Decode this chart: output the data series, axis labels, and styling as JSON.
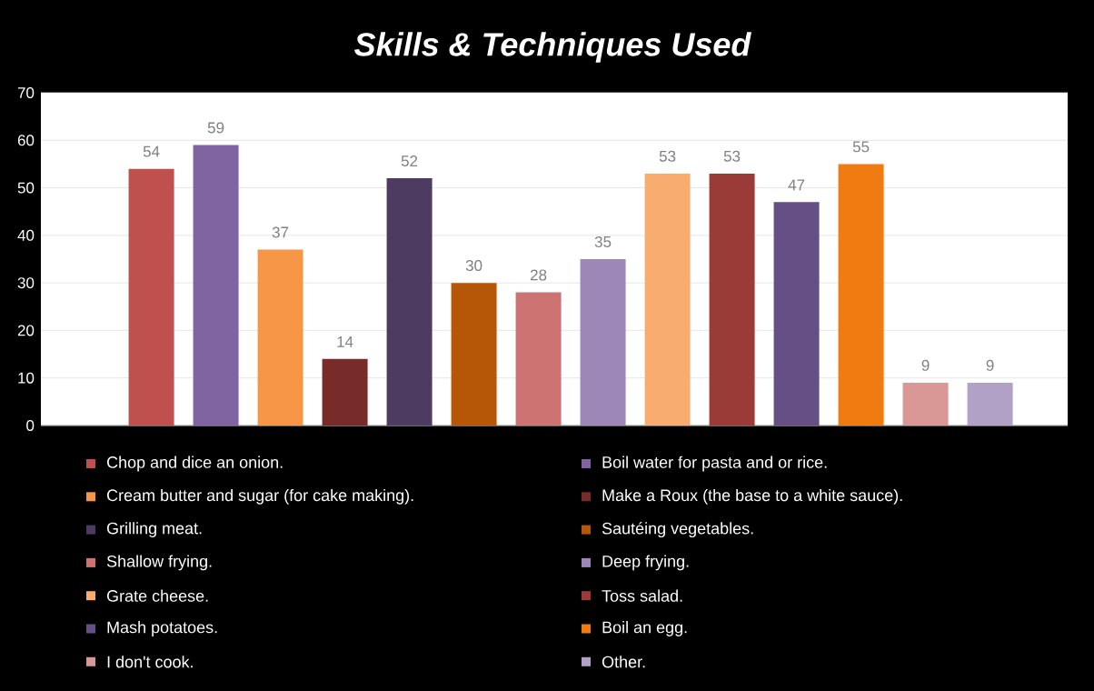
{
  "chart_data": {
    "type": "bar",
    "title": "Skills & Techniques Used",
    "categories": [
      null
    ],
    "series": [
      {
        "name": "Chop and dice an onion.",
        "color": "#c0504d",
        "values": [
          54
        ]
      },
      {
        "name": "Boil water for pasta and or rice.",
        "color": "#8064a2",
        "values": [
          59
        ]
      },
      {
        "name": "Cream butter and sugar (for cake making).",
        "color": "#f79646",
        "values": [
          37
        ]
      },
      {
        "name": "Make a Roux (the base to a white sauce).",
        "color": "#772c2a",
        "values": [
          14
        ]
      },
      {
        "name": "Grilling meat.",
        "color": "#4d3b62",
        "values": [
          52
        ]
      },
      {
        "name": "Sautéing vegetables.",
        "color": "#b65708",
        "values": [
          30
        ]
      },
      {
        "name": "Shallow frying.",
        "color": "#cd7371",
        "values": [
          28
        ]
      },
      {
        "name": "Deep frying.",
        "color": "#9c87b8",
        "values": [
          35
        ]
      },
      {
        "name": "Grate cheese.",
        "color": "#f9ac70",
        "values": [
          53
        ]
      },
      {
        "name": "Toss salad.",
        "color": "#9b3b38",
        "values": [
          53
        ]
      },
      {
        "name": "Mash potatoes.",
        "color": "#654f84",
        "values": [
          47
        ]
      },
      {
        "name": "Boil an egg.",
        "color": "#f07c11",
        "values": [
          55
        ]
      },
      {
        "name": "I don't cook.",
        "color": "#d99795",
        "values": [
          9
        ]
      },
      {
        "name": "Other.",
        "color": "#b2a1c7",
        "values": [
          9
        ]
      }
    ],
    "ylim": [
      0,
      70
    ],
    "yticks": [
      0,
      10,
      20,
      30,
      40,
      50,
      60,
      70
    ],
    "grid": "y",
    "legend": "bottom",
    "data_labels": true
  }
}
